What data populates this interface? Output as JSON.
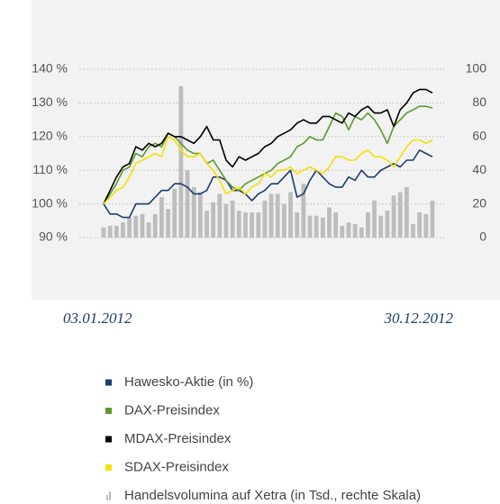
{
  "chart_data": {
    "type": "line",
    "categories": [
      "03.01.2012",
      null,
      null,
      null,
      null,
      null,
      null,
      null,
      null,
      null,
      null,
      null,
      null,
      null,
      null,
      null,
      null,
      null,
      null,
      null,
      null,
      null,
      null,
      null,
      null,
      null,
      null,
      null,
      null,
      null,
      null,
      null,
      null,
      null,
      null,
      null,
      null,
      null,
      null,
      null,
      null,
      null,
      null,
      null,
      null,
      null,
      null,
      null,
      null,
      null,
      null,
      "30.12.2012"
    ],
    "ylim": [
      90,
      140
    ],
    "yticks": [
      {
        "value": 90,
        "label": "90 %"
      },
      {
        "value": 100,
        "label": "100 %"
      },
      {
        "value": 110,
        "label": "110 %"
      },
      {
        "value": 120,
        "label": "120 %"
      },
      {
        "value": 130,
        "label": "130 %"
      },
      {
        "value": 140,
        "label": "140 %"
      }
    ],
    "y2lim": [
      0,
      100
    ],
    "y2ticks": [
      0,
      20,
      40,
      60,
      80,
      100
    ],
    "grid": true,
    "series": [
      {
        "name": "Hawesko-Aktie (in %)",
        "color": "#1b3d6e",
        "values": [
          100,
          97,
          97,
          96,
          96,
          100,
          100,
          100,
          102,
          104,
          104,
          106,
          106,
          105,
          103,
          103,
          104,
          108,
          108,
          107,
          104,
          104,
          103,
          101,
          103,
          104,
          106,
          106,
          108,
          110,
          102,
          103,
          107,
          110,
          108,
          106,
          105,
          105,
          108,
          107,
          110,
          108,
          108,
          110,
          111,
          112,
          111,
          113,
          113,
          116,
          115,
          114
        ]
      },
      {
        "name": "DAX-Preisindex",
        "color": "#5a9a2e",
        "values": [
          100,
          103,
          106,
          110,
          111,
          115,
          114,
          117,
          118,
          117,
          121,
          120,
          118,
          116,
          115,
          115,
          112,
          113,
          110,
          107,
          105,
          104,
          106,
          107,
          108,
          109,
          110,
          112,
          113,
          114,
          117,
          118,
          120,
          119,
          119,
          123,
          127,
          126,
          122,
          126,
          125,
          127,
          125,
          122,
          118,
          123,
          125,
          127,
          128,
          129,
          129,
          128.5
        ]
      },
      {
        "name": "MDAX-Preisindex",
        "color": "#000000",
        "values": [
          100,
          104,
          108,
          111,
          112,
          117,
          116,
          118,
          117,
          118,
          121,
          120,
          120,
          119,
          118,
          120,
          123,
          119,
          119,
          113,
          111,
          114,
          113,
          114,
          115,
          117,
          118,
          120,
          121,
          122,
          124,
          125,
          124,
          124,
          126,
          126,
          125,
          124,
          127,
          126,
          128,
          129,
          127,
          127,
          128,
          123,
          128,
          130,
          133,
          134,
          134,
          133
        ]
      },
      {
        "name": "SDAX-Preisindex",
        "color": "#f5e000",
        "values": [
          100,
          102,
          104,
          105,
          108,
          112,
          113,
          114,
          115,
          114,
          120,
          119,
          116,
          114,
          114,
          115,
          112,
          110,
          107,
          103,
          104,
          105,
          103,
          105,
          106,
          109,
          108,
          110,
          110,
          111,
          109,
          110,
          111,
          110,
          109,
          111,
          114,
          114,
          113,
          113,
          115,
          116,
          114,
          114,
          113,
          111,
          114,
          117,
          119,
          119,
          118,
          119
        ]
      },
      {
        "name": "Handelsvolumina auf Xetra (in Tsd., rechte Skala)",
        "color": "#bdbdbd",
        "type": "bar",
        "axis": "y2",
        "values": [
          6,
          7,
          7,
          9,
          12,
          13,
          14,
          9,
          14,
          24,
          17,
          29,
          90,
          40,
          30,
          27,
          16,
          21,
          26,
          20,
          22,
          16,
          15,
          15,
          15,
          22,
          26,
          26,
          20,
          27,
          15,
          32,
          13,
          13,
          12,
          18,
          15,
          7,
          9,
          8,
          6,
          15,
          22,
          13,
          16,
          25,
          27,
          30,
          8,
          15,
          14,
          22
        ]
      }
    ]
  }
}
